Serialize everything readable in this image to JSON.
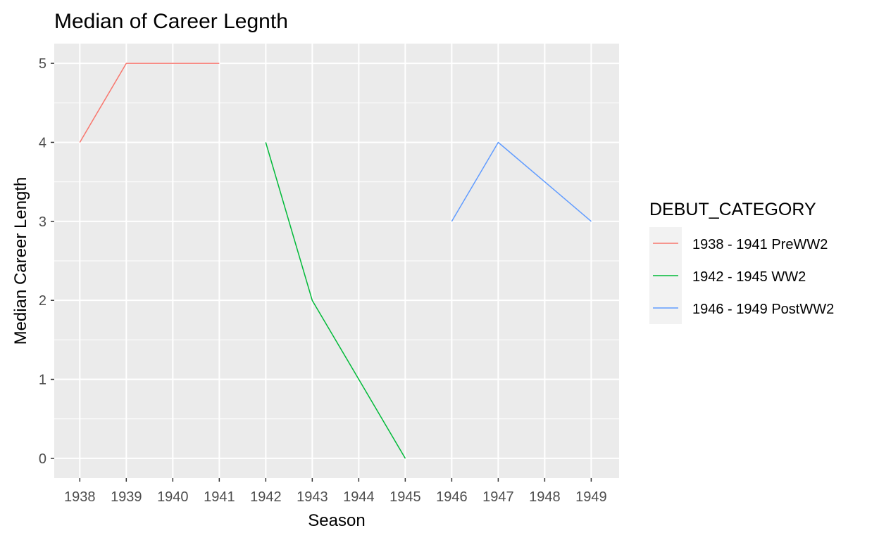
{
  "chart_data": {
    "type": "line",
    "title": "Median of Career Legnth",
    "xlabel": "Season",
    "ylabel": "Median Career Length",
    "x": [
      1938,
      1939,
      1940,
      1941,
      1942,
      1943,
      1944,
      1945,
      1946,
      1947,
      1948,
      1949
    ],
    "x_tick_labels": [
      "1938",
      "1939",
      "1940",
      "1941",
      "1942",
      "1943",
      "1944",
      "1945",
      "1946",
      "1947",
      "1948",
      "1949"
    ],
    "y_tick_labels": [
      "0",
      "1",
      "2",
      "3",
      "4",
      "5"
    ],
    "xlim": [
      1937.45,
      1949.6
    ],
    "ylim": [
      -0.25,
      5.25
    ],
    "grid": true,
    "legend_title": "DEBUT_CATEGORY",
    "legend_position": "right",
    "series": [
      {
        "name": "1938 - 1941 PreWW2",
        "color": "#F8766D",
        "points": [
          [
            1938,
            4
          ],
          [
            1939,
            5
          ],
          [
            1940,
            5
          ],
          [
            1941,
            5
          ]
        ]
      },
      {
        "name": "1942 - 1945 WW2",
        "color": "#00BA38",
        "points": [
          [
            1942,
            4
          ],
          [
            1943,
            2
          ],
          [
            1944,
            1
          ],
          [
            1945,
            0
          ]
        ]
      },
      {
        "name": "1946 - 1949 PostWW2",
        "color": "#619CFF",
        "points": [
          [
            1946,
            3
          ],
          [
            1947,
            4
          ],
          [
            1948,
            3.5
          ],
          [
            1949,
            3
          ]
        ]
      }
    ]
  }
}
